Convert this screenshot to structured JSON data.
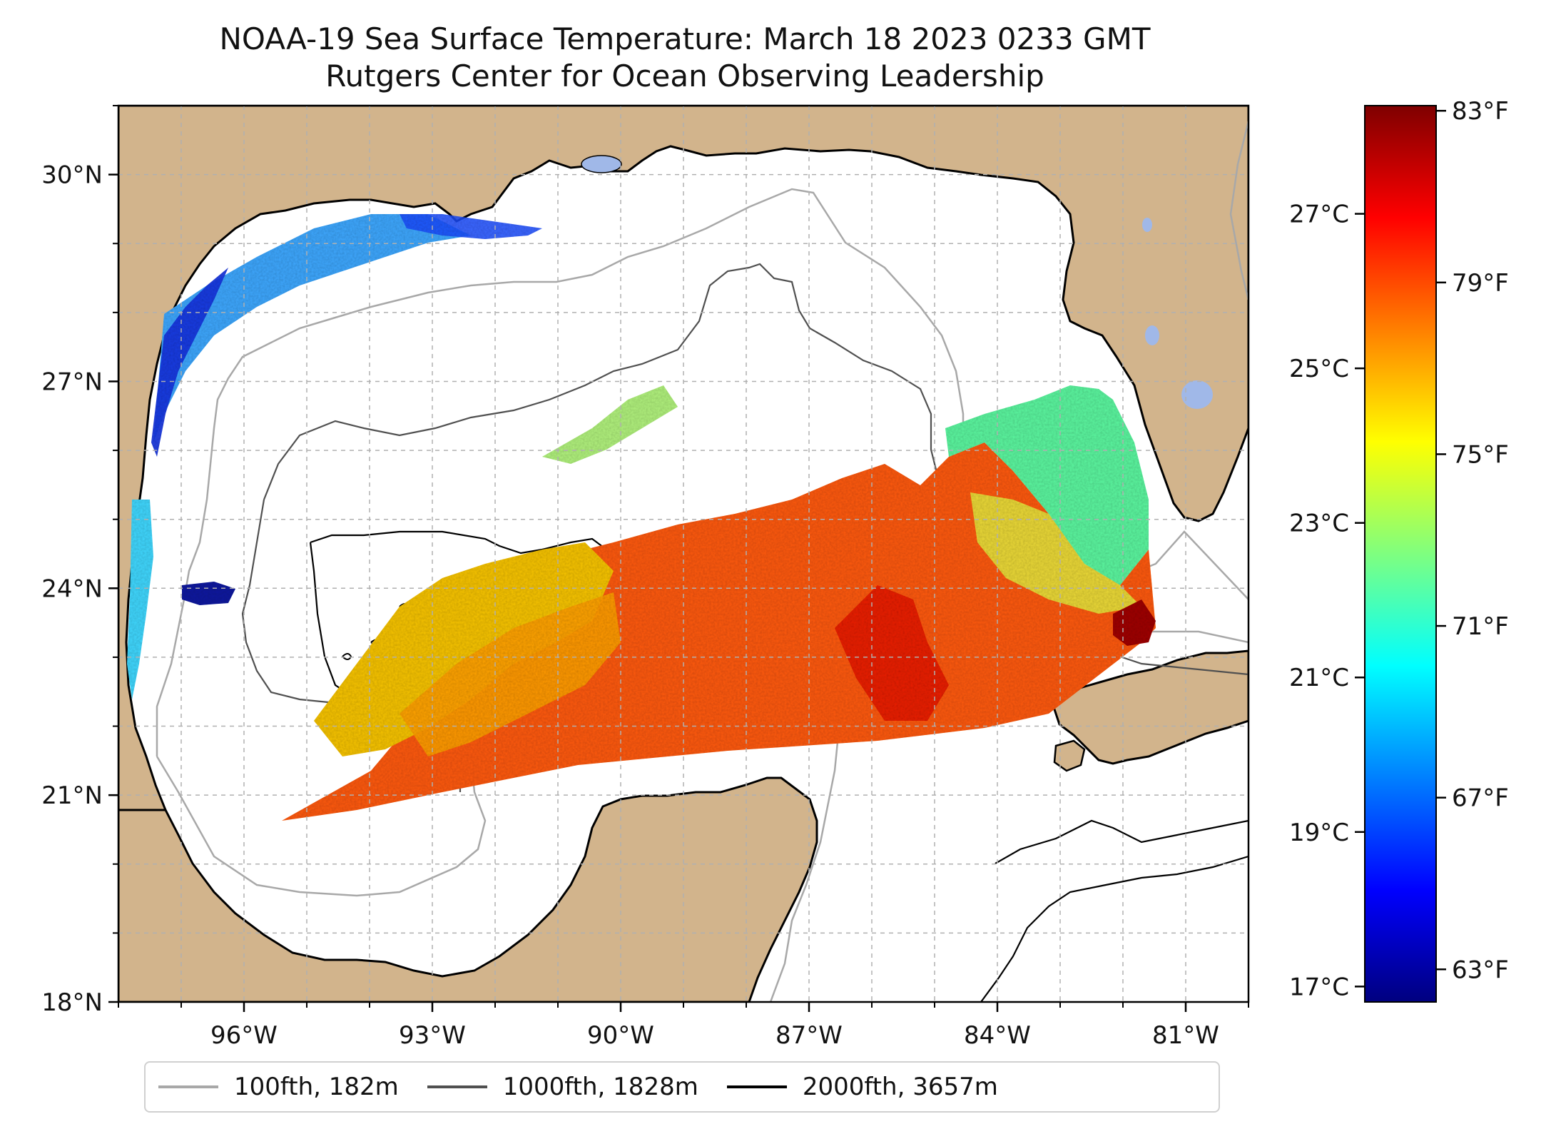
{
  "title_line1": "NOAA-19 Sea Surface Temperature: March 18 2023 0233 GMT",
  "title_line2": "Rutgers Center for Ocean Observing Leadership",
  "map": {
    "lon_range": [
      -98,
      -80
    ],
    "lat_range": [
      18,
      31
    ],
    "lat_ticks": [
      {
        "value": 30,
        "label": "30°N"
      },
      {
        "value": 27,
        "label": "27°N"
      },
      {
        "value": 24,
        "label": "24°N"
      },
      {
        "value": 21,
        "label": "21°N"
      },
      {
        "value": 18,
        "label": "18°N"
      }
    ],
    "lon_ticks": [
      {
        "value": -96,
        "label": "96°W"
      },
      {
        "value": -93,
        "label": "93°W"
      },
      {
        "value": -90,
        "label": "90°W"
      },
      {
        "value": -87,
        "label": "87°W"
      },
      {
        "value": -84,
        "label": "84°W"
      },
      {
        "value": -81,
        "label": "81°W"
      }
    ],
    "grid": true,
    "land_color": "#d2b48c",
    "lake_color": "#a0b8e8"
  },
  "colorbar": {
    "colormap": "jet",
    "range_c": [
      16.8,
      28.4
    ],
    "celsius_ticks": [
      {
        "value": 17,
        "label": "17°C"
      },
      {
        "value": 19,
        "label": "19°C"
      },
      {
        "value": 21,
        "label": "21°C"
      },
      {
        "value": 23,
        "label": "23°C"
      },
      {
        "value": 25,
        "label": "25°C"
      },
      {
        "value": 27,
        "label": "27°C"
      }
    ],
    "fahrenheit_ticks": [
      {
        "value": 63,
        "label": "63°F"
      },
      {
        "value": 67,
        "label": "67°F"
      },
      {
        "value": 71,
        "label": "71°F"
      },
      {
        "value": 75,
        "label": "75°F"
      },
      {
        "value": 79,
        "label": "79°F"
      },
      {
        "value": 83,
        "label": "83°F"
      }
    ]
  },
  "legend": {
    "placement": "bottom-center",
    "items": [
      {
        "label": "100fth, 182m",
        "color": "#a8a8a8"
      },
      {
        "label": "1000fth, 1828m",
        "color": "#505050"
      },
      {
        "label": "2000fth, 3657m",
        "color": "#000000"
      }
    ]
  }
}
